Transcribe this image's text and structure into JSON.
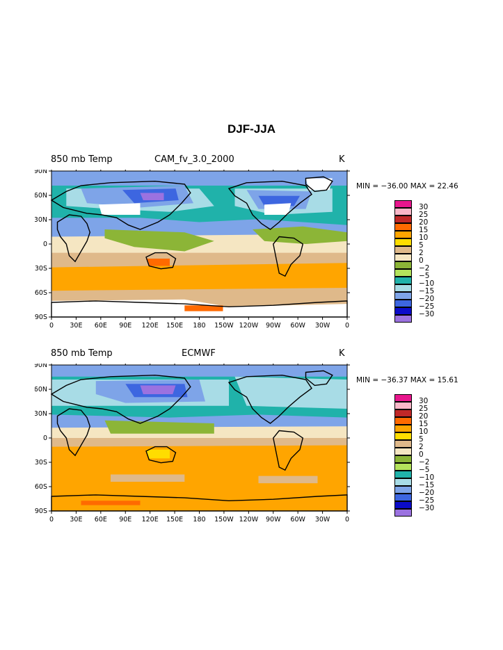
{
  "figure": {
    "title": "DJF-JJA"
  },
  "axes": {
    "lat_labels": [
      "90N",
      "60N",
      "30N",
      "0",
      "30S",
      "60S",
      "90S"
    ],
    "lon_labels": [
      "0",
      "30E",
      "60E",
      "90E",
      "120E",
      "150E",
      "180",
      "150W",
      "120W",
      "90W",
      "60W",
      "30W",
      "0"
    ]
  },
  "colorbar": {
    "labels": [
      "30",
      "25",
      "20",
      "15",
      "10",
      "5",
      "2",
      "0",
      "−2",
      "−5",
      "−10",
      "−15",
      "−20",
      "−25",
      "−30"
    ],
    "colors": [
      "#e8168d",
      "#f9b7c8",
      "#c02828",
      "#ff6a00",
      "#ffa500",
      "#ffdd00",
      "#dfb98a",
      "#f5e6c2",
      "#8cb537",
      "#b4e35c",
      "#20b2aa",
      "#a8dce6",
      "#7ea4e8",
      "#3d66e0",
      "#0b0bc8",
      "#9b72e0"
    ]
  },
  "panels": [
    {
      "variable": "850 mb Temp",
      "case": "CAM_fv_3.0_2000",
      "units": "K",
      "min_label": "MIN = ",
      "min_value": "−36.00",
      "max_label": "MAX = ",
      "max_value": "22.46"
    },
    {
      "variable": "850 mb Temp",
      "case": "ECMWF",
      "units": "K",
      "min_label": "MIN = ",
      "min_value": "−36.37",
      "max_label": "MAX = ",
      "max_value": "15.61"
    }
  ]
}
